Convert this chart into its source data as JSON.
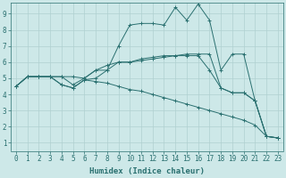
{
  "xlabel": "Humidex (Indice chaleur)",
  "xlim": [
    -0.5,
    23.5
  ],
  "ylim": [
    0.5,
    9.7
  ],
  "xticks": [
    0,
    1,
    2,
    3,
    4,
    5,
    6,
    7,
    8,
    9,
    10,
    11,
    12,
    13,
    14,
    15,
    16,
    17,
    18,
    19,
    20,
    21,
    22,
    23
  ],
  "yticks": [
    1,
    2,
    3,
    4,
    5,
    6,
    7,
    8,
    9
  ],
  "background_color": "#cde8e8",
  "grid_color": "#b0d0d0",
  "line_color": "#2a7070",
  "lines": [
    {
      "x": [
        0,
        1,
        2,
        3,
        4,
        5,
        6,
        7,
        8,
        9,
        10,
        11,
        12,
        13,
        14,
        15,
        16,
        17,
        18,
        19,
        20,
        21,
        22,
        23
      ],
      "y": [
        4.5,
        5.1,
        5.1,
        5.1,
        5.1,
        5.1,
        5.0,
        5.5,
        5.5,
        7.0,
        8.3,
        8.4,
        8.4,
        8.3,
        9.4,
        8.6,
        9.6,
        8.6,
        5.5,
        6.5,
        6.5,
        3.6,
        1.4,
        1.3
      ]
    },
    {
      "x": [
        0,
        1,
        2,
        3,
        4,
        5,
        6,
        7,
        8,
        9,
        10,
        11,
        12,
        13,
        14,
        15,
        16,
        17,
        18,
        19,
        20,
        21,
        22,
        23
      ],
      "y": [
        4.5,
        5.1,
        5.1,
        5.1,
        5.1,
        4.6,
        5.0,
        5.5,
        5.8,
        6.0,
        6.0,
        6.2,
        6.3,
        6.4,
        6.4,
        6.5,
        6.5,
        6.5,
        4.4,
        4.1,
        4.1,
        3.6,
        1.4,
        1.3
      ]
    },
    {
      "x": [
        0,
        1,
        2,
        3,
        4,
        5,
        6,
        7,
        8,
        9,
        10,
        11,
        12,
        13,
        14,
        15,
        16,
        17,
        18,
        19,
        20,
        21,
        22,
        23
      ],
      "y": [
        4.5,
        5.1,
        5.1,
        5.1,
        4.6,
        4.4,
        4.9,
        5.0,
        5.5,
        6.0,
        6.0,
        6.1,
        6.2,
        6.3,
        6.4,
        6.4,
        6.4,
        5.5,
        4.4,
        4.1,
        4.1,
        3.6,
        1.4,
        1.3
      ]
    },
    {
      "x": [
        0,
        1,
        2,
        3,
        4,
        5,
        6,
        7,
        8,
        9,
        10,
        11,
        12,
        13,
        14,
        15,
        16,
        17,
        18,
        19,
        20,
        21,
        22,
        23
      ],
      "y": [
        4.5,
        5.1,
        5.1,
        5.1,
        4.6,
        4.4,
        4.9,
        4.8,
        4.7,
        4.5,
        4.3,
        4.2,
        4.0,
        3.8,
        3.6,
        3.4,
        3.2,
        3.0,
        2.8,
        2.6,
        2.4,
        2.1,
        1.4,
        1.3
      ]
    }
  ]
}
